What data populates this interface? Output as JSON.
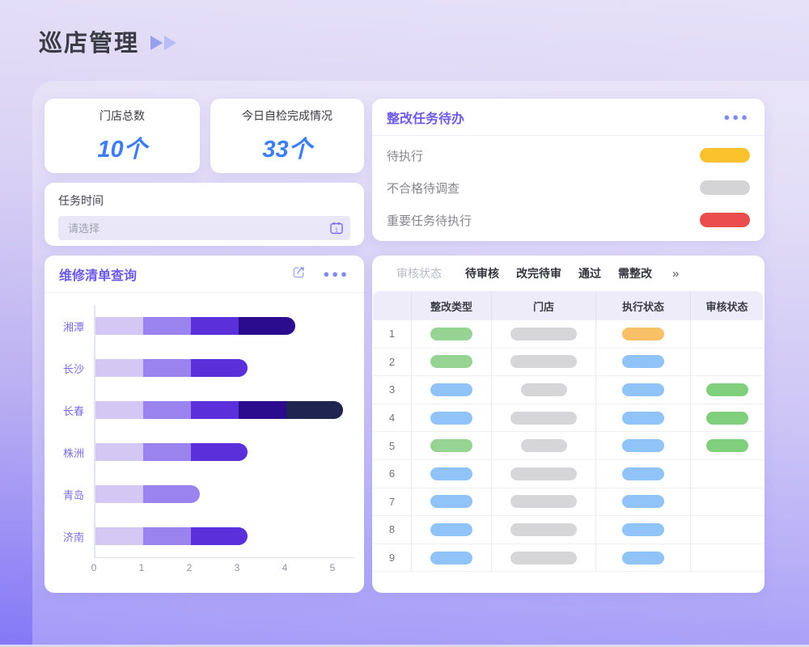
{
  "page": {
    "title": "巡店管理"
  },
  "colors": {
    "accent_purple": "#6C5BE6",
    "stat_blue": "#3D7CFA",
    "play_icon_1": "#97A0F0",
    "play_icon_2": "#B7BDF7"
  },
  "stats": [
    {
      "label": "门店总数",
      "value": "10个"
    },
    {
      "label": "今日自检完成情况",
      "value": "33个"
    }
  ],
  "task_time": {
    "label": "任务时间",
    "placeholder": "请选择"
  },
  "repair_panel": {
    "title": "维修清单查询",
    "export_icon": "share-export",
    "more_icon": "ellipsis"
  },
  "todo_panel": {
    "title": "整改任务待办",
    "more_icon": "ellipsis",
    "items": [
      {
        "label": "待执行",
        "color": "#FBC22D"
      },
      {
        "label": "不合格待调查",
        "color": "#D4D4D6"
      },
      {
        "label": "重要任务待执行",
        "color": "#EB4D4F"
      }
    ]
  },
  "chart_data": {
    "type": "bar",
    "orientation": "horizontal",
    "stacked": true,
    "title": "维修清单查询",
    "categories": [
      "湘潭",
      "长沙",
      "长春",
      "株洲",
      "青岛",
      "济南"
    ],
    "series": [
      {
        "name": "segment-1",
        "color": "#D3C8F4",
        "values": [
          1,
          1,
          1,
          1,
          1,
          1
        ]
      },
      {
        "name": "segment-2",
        "color": "#9A82EF",
        "values": [
          1,
          1,
          1,
          1,
          1,
          1
        ]
      },
      {
        "name": "segment-3",
        "color": "#5B2FD9",
        "values": [
          1,
          1,
          1,
          1,
          0,
          1
        ]
      },
      {
        "name": "segment-4",
        "color": "#2B0C8E",
        "values": [
          1,
          0,
          1,
          0,
          0,
          0
        ]
      },
      {
        "name": "segment-5",
        "color": "#1F254F",
        "values": [
          0,
          0,
          1,
          0,
          0,
          0
        ]
      }
    ],
    "totals": [
      4,
      3,
      5,
      3,
      2,
      3
    ],
    "xlim": [
      0,
      5
    ],
    "xticks": [
      0,
      1,
      2,
      3,
      4,
      5
    ],
    "grid": false,
    "legend": false
  },
  "review_filter": {
    "label": "审核状态",
    "tabs": [
      "待审核",
      "改完待审",
      "通过",
      "需整改"
    ],
    "more": "»"
  },
  "table": {
    "headers": [
      "",
      "整改类型",
      "门店",
      "执行状态",
      "审核状态"
    ],
    "pill_colors": {
      "green": "#97D392",
      "blue": "#90C3F7",
      "gray": "#D6D6D9",
      "orange": "#F8C167",
      "audit_green": "#7FCF7C"
    },
    "rows": [
      {
        "num": "1",
        "type": "green",
        "store": "wide",
        "exec": "orange",
        "audit": ""
      },
      {
        "num": "2",
        "type": "green",
        "store": "wide",
        "exec": "blue",
        "audit": ""
      },
      {
        "num": "3",
        "type": "blue",
        "store": "narrow",
        "exec": "blue",
        "audit": "green"
      },
      {
        "num": "4",
        "type": "blue",
        "store": "wide",
        "exec": "blue",
        "audit": "green"
      },
      {
        "num": "5",
        "type": "green",
        "store": "narrow",
        "exec": "blue",
        "audit": "green"
      },
      {
        "num": "6",
        "type": "blue",
        "store": "wide",
        "exec": "blue",
        "audit": ""
      },
      {
        "num": "7",
        "type": "blue",
        "store": "wide",
        "exec": "blue",
        "audit": ""
      },
      {
        "num": "8",
        "type": "blue",
        "store": "wide",
        "exec": "blue",
        "audit": ""
      },
      {
        "num": "9",
        "type": "blue",
        "store": "wide",
        "exec": "blue",
        "audit": ""
      }
    ]
  }
}
